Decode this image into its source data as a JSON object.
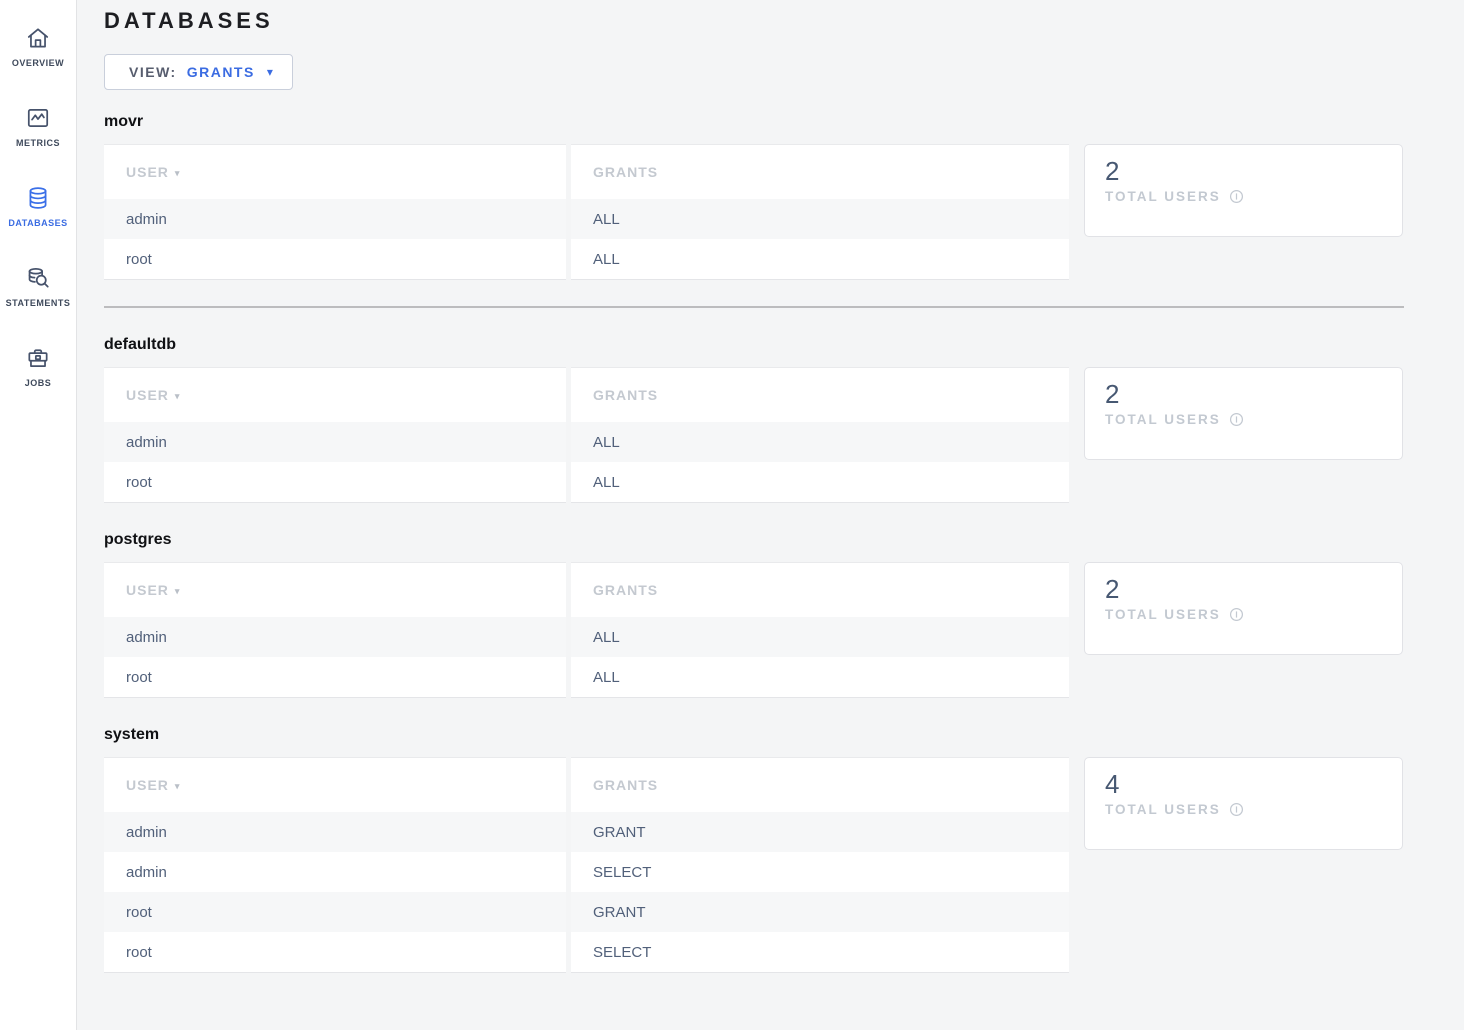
{
  "page_title": "DATABASES",
  "view_dropdown": {
    "label": "VIEW:",
    "value": "GRANTS"
  },
  "sidebar": {
    "items": [
      {
        "id": "overview",
        "label": "OVERVIEW",
        "active": false
      },
      {
        "id": "metrics",
        "label": "METRICS",
        "active": false
      },
      {
        "id": "databases",
        "label": "DATABASES",
        "active": true
      },
      {
        "id": "statements",
        "label": "STATEMENTS",
        "active": false
      },
      {
        "id": "jobs",
        "label": "JOBS",
        "active": false
      }
    ]
  },
  "table": {
    "columns": {
      "user": "USER",
      "grants": "GRANTS"
    }
  },
  "summary_card_label": "TOTAL USERS",
  "databases": [
    {
      "name": "movr",
      "total_users": "2",
      "rows": [
        {
          "user": "admin",
          "grants": "ALL"
        },
        {
          "user": "root",
          "grants": "ALL"
        }
      ],
      "divider_after": true
    },
    {
      "name": "defaultdb",
      "total_users": "2",
      "rows": [
        {
          "user": "admin",
          "grants": "ALL"
        },
        {
          "user": "root",
          "grants": "ALL"
        }
      ],
      "divider_after": false
    },
    {
      "name": "postgres",
      "total_users": "2",
      "rows": [
        {
          "user": "admin",
          "grants": "ALL"
        },
        {
          "user": "root",
          "grants": "ALL"
        }
      ],
      "divider_after": false
    },
    {
      "name": "system",
      "total_users": "4",
      "rows": [
        {
          "user": "admin",
          "grants": "GRANT"
        },
        {
          "user": "admin",
          "grants": "SELECT"
        },
        {
          "user": "root",
          "grants": "GRANT"
        },
        {
          "user": "root",
          "grants": "SELECT"
        }
      ],
      "divider_after": false
    }
  ],
  "colors": {
    "accent_blue": "#3b6ce2",
    "sidebar_icon": "#46526b",
    "page_background": "#f4f5f6",
    "table_row_alt": "#f6f7f8",
    "muted_header_text": "#c4c9d0",
    "cell_text": "#51607a",
    "card_number": "#475872",
    "divider": "#bcbcbe"
  }
}
